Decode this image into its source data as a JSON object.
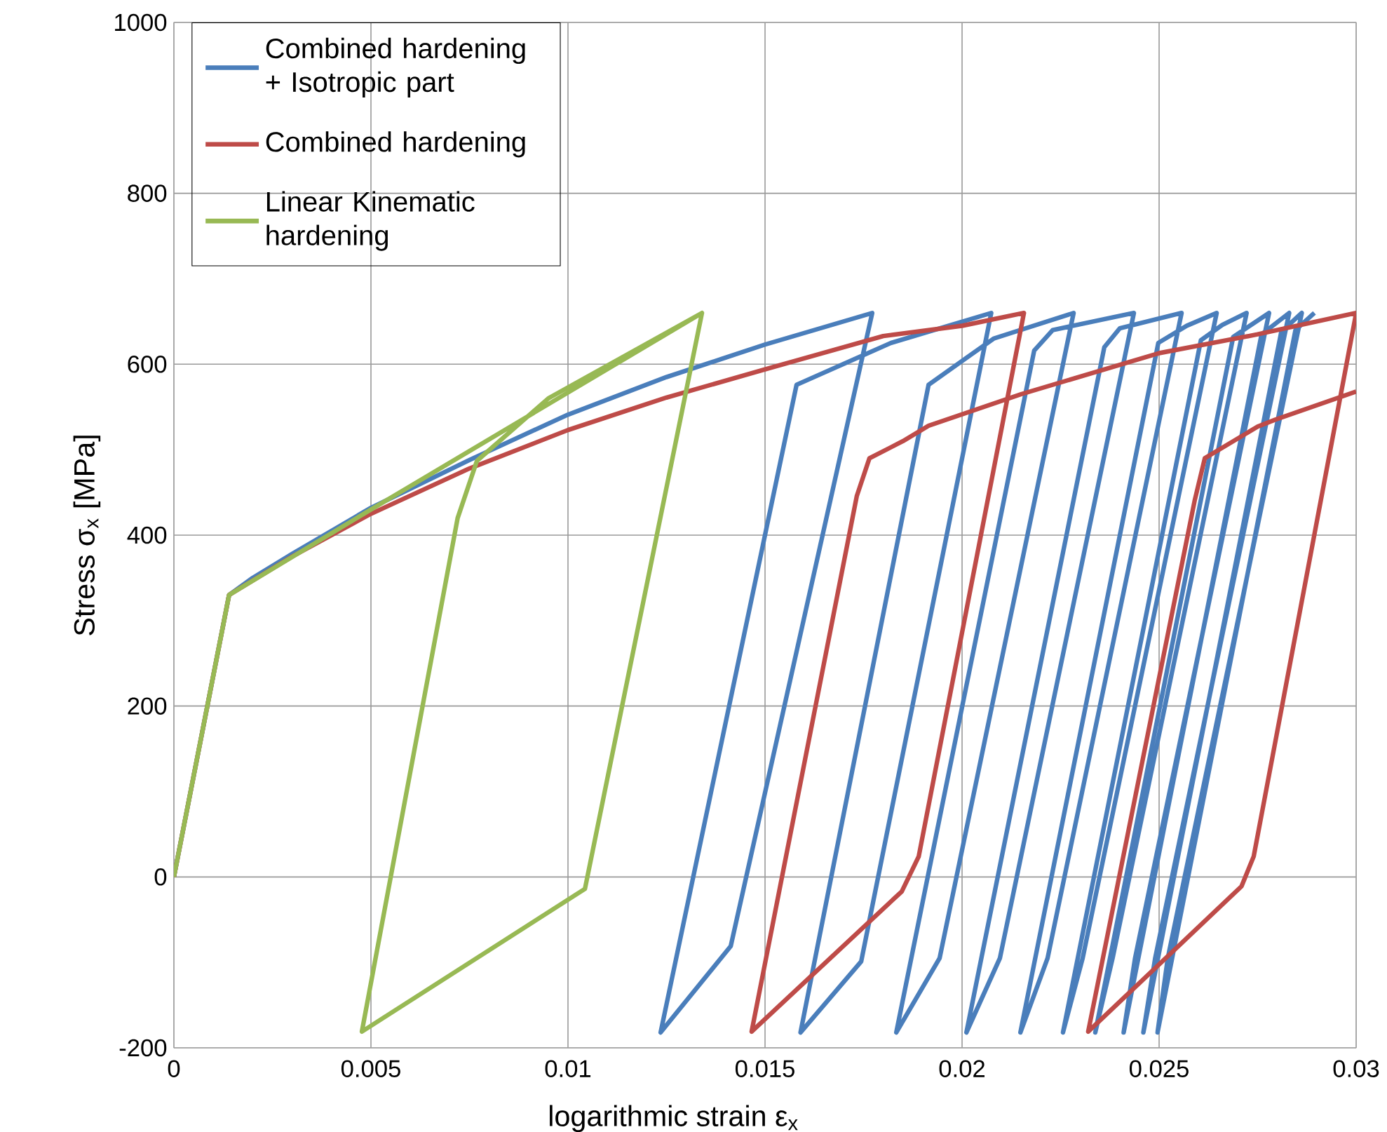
{
  "chart_data": {
    "type": "line",
    "xlabel": "logarithmic strain ε$_{x}$",
    "ylabel": "Stress  σ$_{x}$ [MPa]",
    "xlim": [
      0,
      0.03
    ],
    "ylim": [
      -200,
      1000
    ],
    "xticks": [
      0,
      0.005,
      0.01,
      0.015,
      0.02,
      0.025,
      0.03
    ],
    "yticks": [
      -200,
      0,
      200,
      400,
      600,
      800,
      1000
    ],
    "grid": true,
    "legend": "top left",
    "marker": "none",
    "line_style": "solid",
    "series": [
      {
        "name": "Combined hardening + Isotropic part",
        "color": "#4a7ebb",
        "x": [
          0,
          0.0014,
          0.002,
          0.003,
          0.005,
          0.0075,
          0.01,
          0.0125,
          0.015,
          0.01772,
          0.01413,
          0.01235,
          0.0158,
          0.0182,
          0.02074,
          0.01744,
          0.0159,
          0.01915,
          0.0208,
          0.02283,
          0.01943,
          0.01833,
          0.02183,
          0.0223,
          0.02436,
          0.02096,
          0.02011,
          0.02361,
          0.024,
          0.02557,
          0.02217,
          0.02148,
          0.02498,
          0.0257,
          0.02646,
          0.02306,
          0.02256,
          0.02606,
          0.0266,
          0.02722,
          0.02382,
          0.02338,
          0.02688,
          0.02779,
          0.02439,
          0.0241,
          0.0276,
          0.0283,
          0.0249,
          0.0246,
          0.0281,
          0.02862,
          0.02522,
          0.02496,
          0.02846,
          0.02894
        ],
        "values": [
          0,
          330,
          350,
          378,
          432,
          488,
          541,
          585,
          623,
          660,
          -81,
          -182,
          576,
          625,
          660,
          -99,
          -182,
          576,
          630,
          660,
          -95,
          -182,
          616,
          640,
          660,
          -95,
          -182,
          620,
          642,
          660,
          -95,
          -182,
          625,
          645,
          660,
          -95,
          -182,
          628,
          646,
          660,
          -95,
          -182,
          632,
          660,
          -95,
          -182,
          635,
          660,
          -95,
          -182,
          638,
          660,
          -95,
          -182,
          640,
          660
        ]
      },
      {
        "name": "Combined hardening",
        "color": "#be4b48",
        "x": [
          0,
          0.0014,
          0.003,
          0.005,
          0.0075,
          0.01,
          0.0125,
          0.015,
          0.018,
          0.02,
          0.02157,
          0.0189,
          0.01847,
          0.01466,
          0.01733,
          0.01765,
          0.0185,
          0.01915,
          0.0215,
          0.025,
          0.0275,
          0.03,
          0.0274,
          0.02709,
          0.0232,
          0.0259,
          0.02616,
          0.0275,
          0.02794,
          0.03
        ],
        "values": [
          0,
          330,
          375,
          425,
          478,
          523,
          561,
          594,
          633,
          645,
          660,
          24,
          -17,
          -181,
          446,
          490,
          510,
          528,
          565,
          613,
          635,
          660,
          24,
          -11,
          -181,
          440,
          490,
          527,
          535,
          568
        ]
      },
      {
        "name": "Linear Kinematic hardening",
        "color": "#98b954",
        "x": [
          0,
          0.0014,
          0.005,
          0.0134,
          0.01043,
          0.00477,
          0.0072,
          0.00769,
          0.0095,
          0.0134
        ],
        "values": [
          0,
          330,
          430,
          660,
          -14,
          -181,
          420,
          487,
          560,
          660
        ]
      }
    ]
  }
}
